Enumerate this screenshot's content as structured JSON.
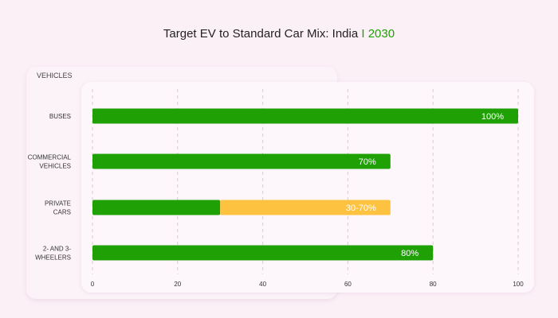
{
  "title": {
    "main": "Target EV to Standard Car Mix: India",
    "highlight": "I 2030"
  },
  "colors": {
    "ev": "#1fa005",
    "range": "#fdc240",
    "highlight": "#1fa005"
  },
  "chart_data": {
    "type": "bar",
    "orientation": "horizontal",
    "title": "Target EV to Standard Car Mix: India I 2030",
    "ylabel": "VEHICLES",
    "categories": [
      [
        "BUSES"
      ],
      [
        "COMMERCIAL",
        "VEHICLES"
      ],
      [
        "PRIVATE",
        "CARS"
      ],
      [
        "2- AND 3-",
        "WHEELERS"
      ]
    ],
    "series": [
      {
        "values": [
          100,
          70,
          30,
          80
        ],
        "color": "#1fa005"
      },
      {
        "values": [
          0,
          0,
          40,
          0
        ],
        "color": "#fdc240"
      }
    ],
    "data_labels": [
      "100%",
      "70%",
      "30-70%",
      "80%"
    ],
    "xlim": [
      0,
      100
    ],
    "xticks": [
      0,
      20,
      40,
      60,
      80,
      100
    ],
    "grid": true
  }
}
